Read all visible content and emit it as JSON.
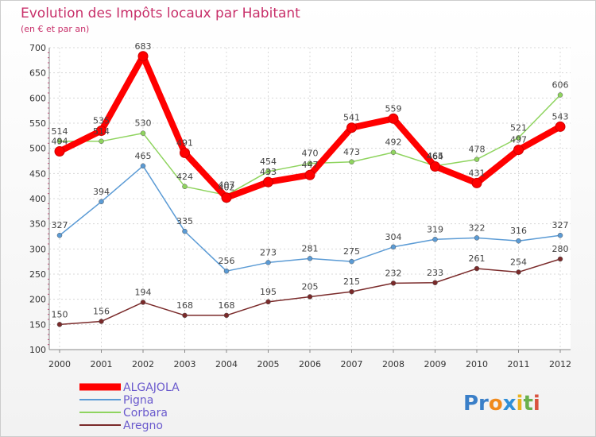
{
  "chart_data": {
    "type": "line",
    "title": "Evolution des Impôts locaux par Habitant",
    "subtitle": "(en € et par an)",
    "x": [
      "2000",
      "2001",
      "2002",
      "2003",
      "2004",
      "2005",
      "2006",
      "2007",
      "2008",
      "2009",
      "2010",
      "2011",
      "2012"
    ],
    "ylim": [
      100,
      700
    ],
    "yticks": [
      100,
      150,
      200,
      250,
      300,
      350,
      400,
      450,
      500,
      550,
      600,
      650,
      700
    ],
    "grid": true,
    "legend_position": "bottom-left",
    "series": [
      {
        "name": "ALGAJOLA",
        "color": "#ff0000",
        "values": [
          494,
          535,
          683,
          491,
          402,
          433,
          447,
          541,
          559,
          464,
          431,
          497,
          543
        ]
      },
      {
        "name": "Pigna",
        "color": "#5b9bd5",
        "values": [
          327,
          394,
          465,
          335,
          256,
          273,
          281,
          275,
          304,
          319,
          322,
          316,
          327
        ]
      },
      {
        "name": "Corbara",
        "color": "#8fd45f",
        "values": [
          514,
          514,
          530,
          424,
          407,
          454,
          470,
          473,
          492,
          465,
          478,
          521,
          606
        ]
      },
      {
        "name": "Aregno",
        "color": "#7a2a2a",
        "values": [
          150,
          156,
          194,
          168,
          168,
          195,
          205,
          215,
          232,
          233,
          261,
          254,
          280
        ]
      }
    ]
  },
  "logo": {
    "parts": [
      "Pr",
      "o",
      "x",
      "i",
      "t",
      "i"
    ]
  }
}
